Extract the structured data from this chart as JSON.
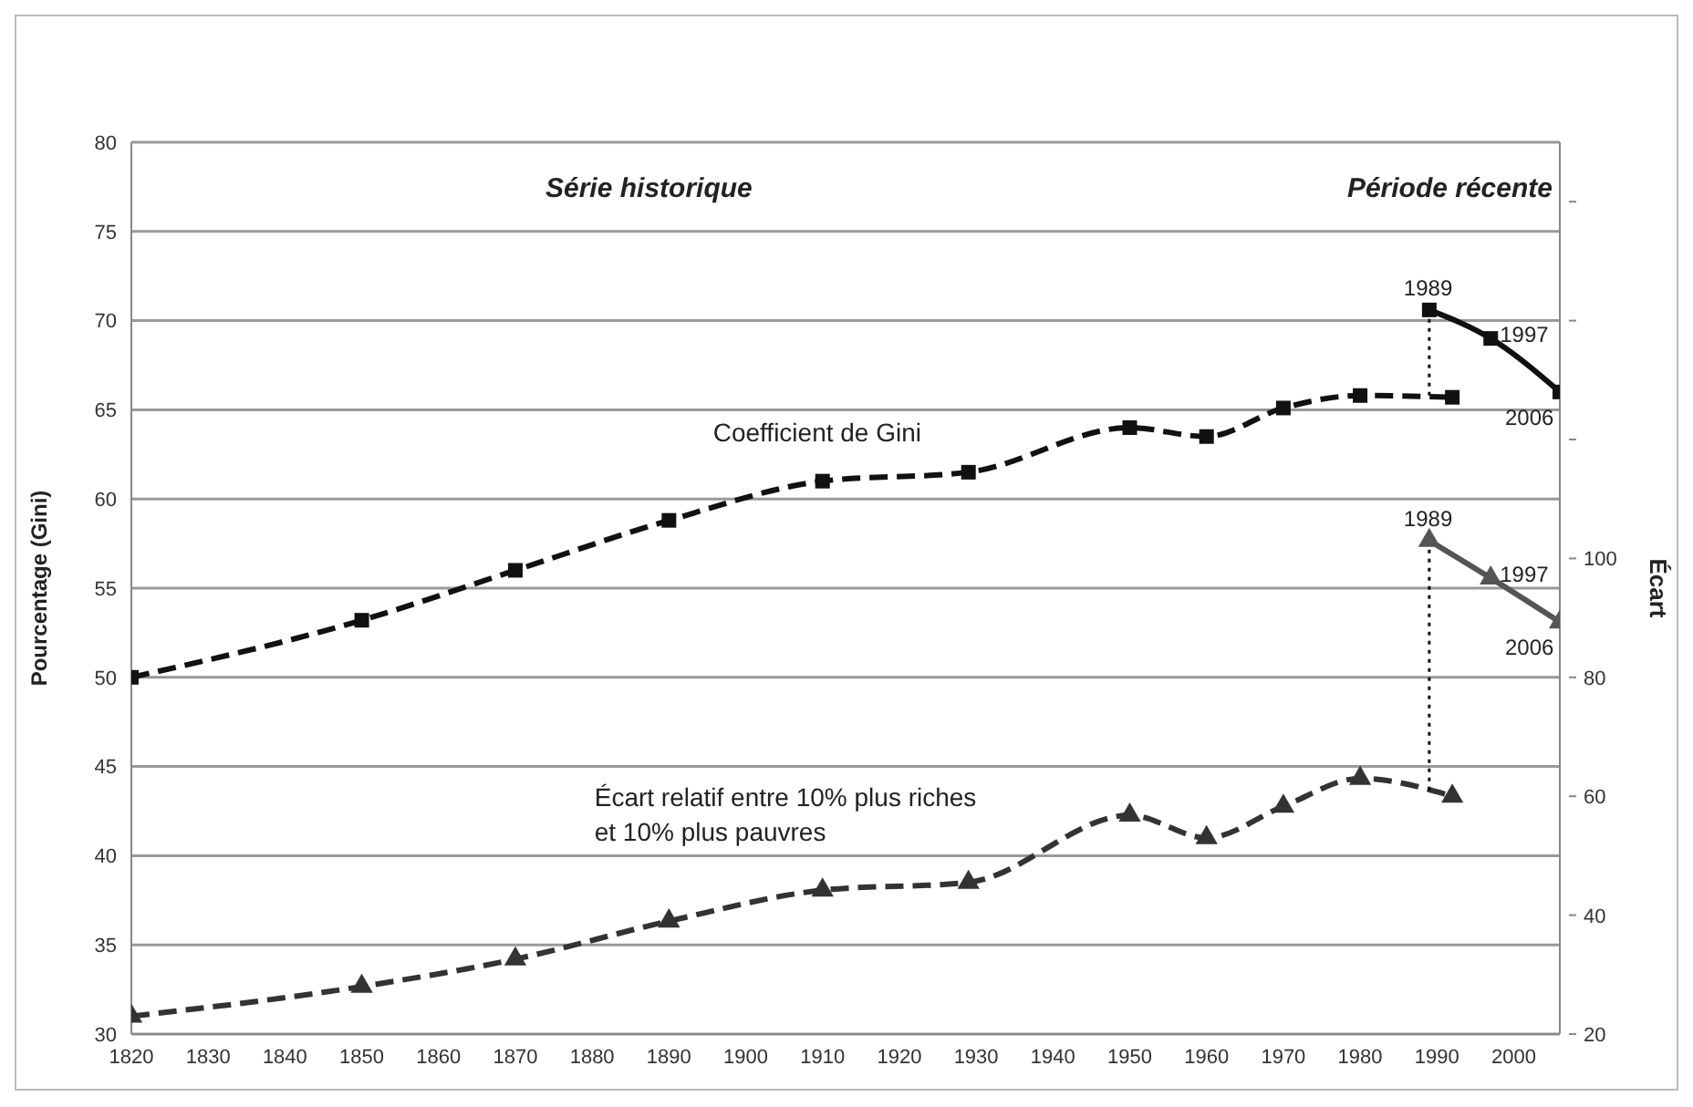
{
  "chart_data": {
    "type": "line",
    "ylabel": "Pourcentage (Gini)",
    "y2label": "Écart",
    "annotations": [
      "Série historique",
      "Période récente",
      "1989",
      "1997",
      "2006",
      "1989",
      "1997",
      "2006"
    ],
    "xlim": [
      1820,
      2006
    ],
    "xticks": [
      1820,
      1830,
      1840,
      1850,
      1860,
      1870,
      1880,
      1890,
      1900,
      1910,
      1920,
      1930,
      1940,
      1950,
      1960,
      1970,
      1980,
      1990,
      2000
    ],
    "ylim": [
      30,
      80
    ],
    "yticks": [
      30,
      35,
      40,
      45,
      50,
      55,
      60,
      65,
      70,
      75,
      80
    ],
    "y2lim": [
      20,
      170
    ],
    "y2ticks": [
      20,
      40,
      60,
      80,
      100,
      {
        "value": 120,
        "label": null
      },
      {
        "value": 140,
        "label": null
      },
      {
        "value": 160,
        "label": null
      }
    ],
    "grid": "y",
    "legend": false,
    "series": [
      {
        "name": "Coefficient de Gini",
        "color": "#111111",
        "line_style": "dashed",
        "marker": "square",
        "x": [
          1820,
          1850,
          1870,
          1890,
          1910,
          1929,
          1950,
          1960,
          1970,
          1980,
          1992
        ],
        "values": [
          50,
          53.2,
          56,
          58.8,
          61,
          61.5,
          64,
          63.5,
          65.1,
          65.8,
          65.7
        ]
      },
      {
        "color": "#111111",
        "line_style": "solid",
        "marker": "square",
        "x": [
          1989,
          1997,
          2006
        ],
        "values": [
          70.6,
          69,
          66
        ]
      },
      {
        "color": "#111111",
        "line_style": "dotted",
        "marker": "none",
        "x": [
          1989,
          1989
        ],
        "values": [
          70.6,
          65.7
        ]
      },
      {
        "name": "Écart relatif entre 10% plus riches et 10% plus pauvres",
        "color": "#333333",
        "line_style": "dashed",
        "marker": "triangle",
        "axis": "y2",
        "x": [
          1820,
          1850,
          1870,
          1890,
          1910,
          1929,
          1950,
          1960,
          1970,
          1980,
          1992
        ],
        "values": [
          23,
          28,
          32.6,
          39,
          44.2,
          45.5,
          56.8,
          53,
          58.3,
          63,
          60
        ]
      },
      {
        "color": "#555555",
        "line_style": "solid",
        "marker": "triangle",
        "axis": "y2",
        "x": [
          1989,
          1997,
          2006
        ],
        "values": [
          103,
          96.7,
          89.3
        ]
      },
      {
        "color": "#111111",
        "line_style": "dotted",
        "marker": "none",
        "axis": "y2",
        "x": [
          1989,
          1989
        ],
        "values": [
          103,
          60.5
        ]
      }
    ]
  }
}
